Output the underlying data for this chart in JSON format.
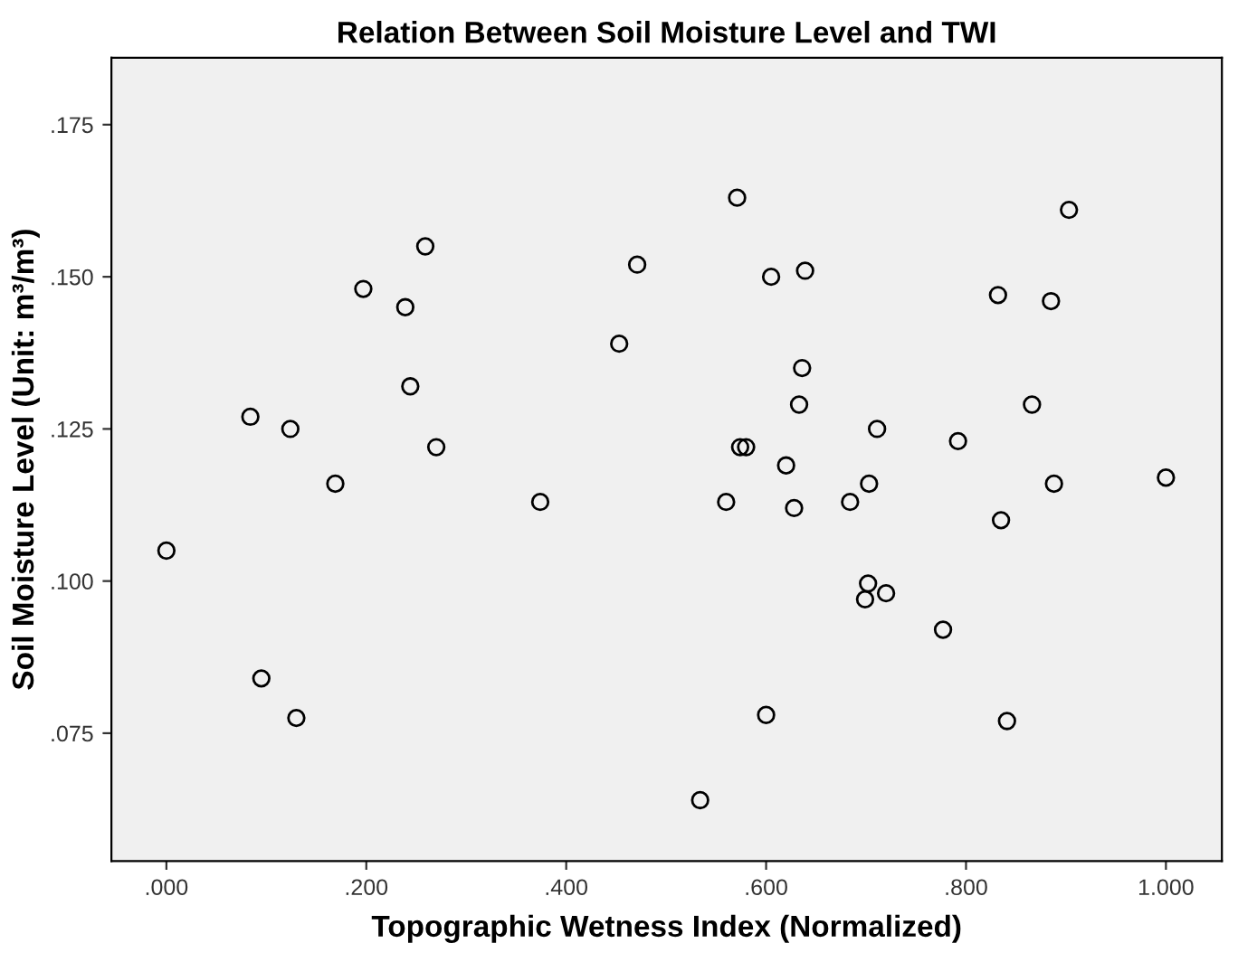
{
  "chart_data": {
    "type": "scatter",
    "title": "Relation Between Soil Moisture Level and TWI",
    "xlabel": "Topographic Wetness Index (Normalized)",
    "ylabel": "Soil Moisture Level (Unit: m³/m³)",
    "x": [
      0.0,
      0.084,
      0.124,
      0.169,
      0.197,
      0.239,
      0.259,
      0.244,
      0.27,
      0.095,
      0.13,
      0.374,
      0.453,
      0.471,
      0.571,
      0.903,
      0.605,
      0.639,
      0.832,
      0.885,
      0.636,
      0.633,
      0.866,
      0.711,
      0.792,
      0.574,
      0.58,
      0.62,
      0.703,
      0.888,
      1.0,
      0.56,
      0.628,
      0.684,
      0.835,
      0.702,
      0.699,
      0.72,
      0.777,
      0.6,
      0.841,
      0.534
    ],
    "values": [
      0.105,
      0.127,
      0.125,
      0.116,
      0.148,
      0.145,
      0.155,
      0.132,
      0.122,
      0.084,
      0.0775,
      0.113,
      0.139,
      0.152,
      0.163,
      0.161,
      0.15,
      0.151,
      0.147,
      0.146,
      0.135,
      0.129,
      0.129,
      0.125,
      0.123,
      0.122,
      0.122,
      0.119,
      0.116,
      0.116,
      0.117,
      0.113,
      0.112,
      0.113,
      0.11,
      0.0996,
      0.097,
      0.098,
      0.092,
      0.078,
      0.077,
      0.064
    ],
    "color": "#000000",
    "marker": "circle",
    "grid": false,
    "xlim": [
      -0.055,
      1.056
    ],
    "ylim": [
      0.054,
      0.186
    ],
    "xticks": [
      {
        "value": 0,
        "label": ".000"
      },
      {
        "value": 0.2,
        "label": ".200"
      },
      {
        "value": 0.4,
        "label": ".400"
      },
      {
        "value": 0.6,
        "label": ".600"
      },
      {
        "value": 0.8,
        "label": ".800"
      },
      {
        "value": 1.0,
        "label": "1.000"
      }
    ],
    "yticks": [
      {
        "value": 0.075,
        "label": ".075"
      },
      {
        "value": 0.1,
        "label": ".100"
      },
      {
        "value": 0.125,
        "label": ".125"
      },
      {
        "value": 0.15,
        "label": ".150"
      },
      {
        "value": 0.175,
        "label": ".175"
      }
    ]
  }
}
